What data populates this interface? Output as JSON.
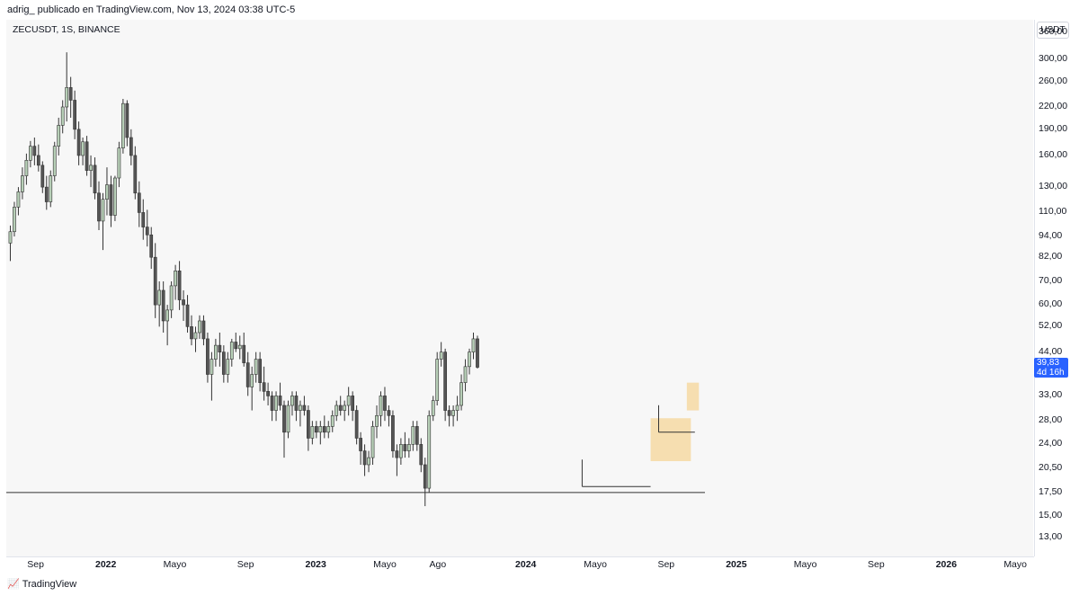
{
  "header": {
    "publisher_text": "adrig_ publicado en TradingView.com, Nov 13, 2024 03:38 UTC-5"
  },
  "symbol_label": "ZECUSDT, 1S, BINANCE",
  "price_unit": "USDT",
  "price_badge": {
    "price": "39,83",
    "countdown": "4d 16h"
  },
  "footer": {
    "logo_icon": "tradingview-logo-icon",
    "brand": "TradingView"
  },
  "colors": {
    "up": "#b7cfb7",
    "down": "#555555",
    "wick": "#333333",
    "zone": "#f5d79e",
    "badge": "#2962ff"
  },
  "chart_data": {
    "type": "candlestick",
    "title": "ZECUSDT, 1S, BINANCE",
    "y_scale": "log",
    "ylim": [
      11.5,
      390
    ],
    "y_ticks": [
      13,
      15,
      17.5,
      20.5,
      24,
      28,
      33,
      39.83,
      44,
      52,
      60,
      70,
      82,
      94,
      110,
      130,
      160,
      190,
      220,
      260,
      300,
      360
    ],
    "y_tick_labels": [
      "13,00",
      "15,00",
      "17,50",
      "20,50",
      "24,00",
      "28,00",
      "33,00",
      "",
      "44,00",
      "52,00",
      "60,00",
      "70,00",
      "82,00",
      "94,00",
      "110,00",
      "130,00",
      "160,00",
      "190,00",
      "220,00",
      "260,00",
      "300,00",
      "360,00"
    ],
    "x_ticks": [
      {
        "label": "Sep",
        "date": "2021-09-01",
        "major": false
      },
      {
        "label": "2022",
        "date": "2022-01-01",
        "major": true
      },
      {
        "label": "Mayo",
        "date": "2022-05-01",
        "major": false
      },
      {
        "label": "Sep",
        "date": "2022-09-01",
        "major": false
      },
      {
        "label": "2023",
        "date": "2023-01-01",
        "major": true
      },
      {
        "label": "Mayo",
        "date": "2023-05-01",
        "major": false
      },
      {
        "label": "Ago",
        "date": "2023-08-01",
        "major": false
      },
      {
        "label": "2024",
        "date": "2024-01-01",
        "major": true
      },
      {
        "label": "Mayo",
        "date": "2024-05-01",
        "major": false
      },
      {
        "label": "Sep",
        "date": "2024-09-01",
        "major": false
      },
      {
        "label": "2025",
        "date": "2025-01-01",
        "major": true
      },
      {
        "label": "Mayo",
        "date": "2025-05-01",
        "major": false
      },
      {
        "label": "Sep",
        "date": "2025-09-01",
        "major": false
      },
      {
        "label": "2026",
        "date": "2026-01-01",
        "major": true
      },
      {
        "label": "Mayo",
        "date": "2026-05-01",
        "major": false
      }
    ],
    "x_range": [
      "2021-07-12",
      "2026-06-01"
    ],
    "candles_weekly": {
      "start": "2021-07-19",
      "ohlc": [
        [
          90,
          101,
          80,
          97
        ],
        [
          97,
          118,
          94,
          114
        ],
        [
          114,
          130,
          108,
          126
        ],
        [
          126,
          148,
          120,
          140
        ],
        [
          140,
          162,
          132,
          155
        ],
        [
          155,
          176,
          148,
          170
        ],
        [
          170,
          180,
          150,
          160
        ],
        [
          160,
          172,
          144,
          150
        ],
        [
          150,
          154,
          125,
          130
        ],
        [
          130,
          140,
          112,
          118
        ],
        [
          118,
          145,
          114,
          140
        ],
        [
          140,
          175,
          135,
          170
        ],
        [
          170,
          205,
          160,
          195
        ],
        [
          195,
          230,
          185,
          220
        ],
        [
          220,
          315,
          200,
          250
        ],
        [
          250,
          268,
          205,
          230
        ],
        [
          230,
          245,
          178,
          190
        ],
        [
          190,
          200,
          150,
          160
        ],
        [
          160,
          180,
          150,
          175
        ],
        [
          175,
          182,
          140,
          145
        ],
        [
          145,
          160,
          130,
          150
        ],
        [
          150,
          158,
          120,
          125
        ],
        [
          125,
          135,
          98,
          104
        ],
        [
          104,
          125,
          86,
          120
        ],
        [
          120,
          148,
          108,
          132
        ],
        [
          132,
          140,
          100,
          108
        ],
        [
          108,
          140,
          104,
          138
        ],
        [
          138,
          175,
          130,
          168
        ],
        [
          168,
          232,
          162,
          225
        ],
        [
          225,
          230,
          170,
          180
        ],
        [
          180,
          190,
          150,
          160
        ],
        [
          160,
          170,
          120,
          125
        ],
        [
          125,
          135,
          100,
          110
        ],
        [
          110,
          120,
          92,
          100
        ],
        [
          100,
          112,
          88,
          95
        ],
        [
          95,
          100,
          76,
          82
        ],
        [
          82,
          90,
          55,
          60
        ],
        [
          60,
          70,
          52,
          66
        ],
        [
          66,
          70,
          50,
          54
        ],
        [
          54,
          60,
          46,
          58
        ],
        [
          58,
          70,
          55,
          68
        ],
        [
          68,
          78,
          62,
          75
        ],
        [
          75,
          80,
          58,
          62
        ],
        [
          62,
          66,
          54,
          60
        ],
        [
          60,
          64,
          50,
          52
        ],
        [
          52,
          56,
          46,
          48
        ],
        [
          48,
          52,
          44,
          50
        ],
        [
          50,
          56,
          48,
          54
        ],
        [
          54,
          56,
          46,
          48
        ],
        [
          48,
          50,
          36,
          38
        ],
        [
          38,
          44,
          32,
          42
        ],
        [
          42,
          48,
          40,
          46
        ],
        [
          46,
          50,
          40,
          44
        ],
        [
          44,
          46,
          36,
          38
        ],
        [
          38,
          44,
          36,
          42
        ],
        [
          42,
          48,
          40,
          47
        ],
        [
          47,
          50,
          44,
          45
        ],
        [
          45,
          49,
          42,
          46
        ],
        [
          46,
          50,
          40,
          41
        ],
        [
          41,
          44,
          33,
          35
        ],
        [
          35,
          40,
          30,
          38
        ],
        [
          38,
          44,
          36,
          42
        ],
        [
          42,
          44,
          34,
          36
        ],
        [
          36,
          40,
          32,
          34
        ],
        [
          34,
          36,
          31,
          33
        ],
        [
          33,
          34,
          28,
          30
        ],
        [
          30,
          34,
          28,
          33
        ],
        [
          33,
          36,
          30,
          31
        ],
        [
          31,
          32,
          22,
          26
        ],
        [
          26,
          32,
          25,
          31
        ],
        [
          31,
          34,
          29,
          33
        ],
        [
          33,
          34,
          28,
          30
        ],
        [
          30,
          32,
          27,
          31
        ],
        [
          31,
          33,
          29,
          30
        ],
        [
          30,
          31,
          23,
          25
        ],
        [
          25,
          28,
          24,
          27
        ],
        [
          27,
          28,
          25,
          26
        ],
        [
          26,
          28,
          24,
          27
        ],
        [
          27,
          29,
          25,
          26
        ],
        [
          26,
          28,
          25,
          27
        ],
        [
          27,
          30,
          26,
          29
        ],
        [
          29,
          32,
          28,
          31
        ],
        [
          31,
          33,
          29,
          30
        ],
        [
          30,
          32,
          28,
          31
        ],
        [
          31,
          35,
          29,
          33
        ],
        [
          33,
          34,
          28,
          30
        ],
        [
          30,
          31,
          24,
          25
        ],
        [
          25,
          26,
          21,
          23
        ],
        [
          23,
          24,
          19.5,
          21
        ],
        [
          21,
          23,
          20,
          22
        ],
        [
          22,
          28,
          21,
          27
        ],
        [
          27,
          31,
          25,
          29
        ],
        [
          29,
          34,
          27,
          33
        ],
        [
          33,
          35,
          28,
          30
        ],
        [
          30,
          31,
          27,
          29
        ],
        [
          29,
          30,
          22,
          23
        ],
        [
          23,
          24,
          19.5,
          22
        ],
        [
          22,
          25,
          21,
          24
        ],
        [
          24,
          26,
          22,
          23
        ],
        [
          23,
          25,
          22,
          24
        ],
        [
          24,
          28,
          23,
          27
        ],
        [
          27,
          28,
          23,
          24
        ],
        [
          24,
          25,
          20,
          21
        ],
        [
          21,
          22,
          16,
          18
        ],
        [
          18,
          30,
          17.5,
          29
        ],
        [
          29,
          33,
          28,
          32
        ],
        [
          32,
          44,
          31,
          42
        ],
        [
          42,
          47,
          40,
          44
        ],
        [
          44,
          45,
          28,
          30
        ],
        [
          30,
          31,
          27,
          29
        ],
        [
          29,
          31,
          27,
          30
        ],
        [
          30,
          33,
          28,
          31
        ],
        [
          31,
          38,
          30,
          36
        ],
        [
          36,
          42,
          34,
          40
        ],
        [
          40,
          45,
          38,
          44
        ],
        [
          44,
          50,
          42,
          48
        ],
        [
          48,
          49,
          39.5,
          39.83
        ]
      ]
    },
    "annotations": {
      "horizontal_line": 17.5,
      "demand_zones": [
        {
          "from": "2024-08-05",
          "to": "2024-10-14",
          "low": 21.5,
          "high": 28.5
        },
        {
          "from": "2024-10-07",
          "to": "2024-10-28",
          "low": 30,
          "high": 36
        }
      ],
      "swing_lows": [
        {
          "from": "2024-04-08",
          "to": "2024-08-05",
          "price": 18.2
        },
        {
          "from": "2024-08-19",
          "to": "2024-10-21",
          "price": 26
        }
      ]
    },
    "last_price": 39.83
  }
}
